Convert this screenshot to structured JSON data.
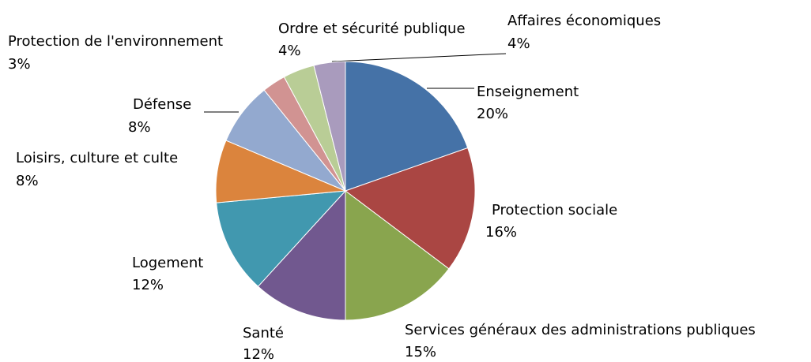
{
  "chart_data": {
    "type": "pie",
    "categories": [
      "Enseignement",
      "Protection sociale",
      "Services généraux des administrations publiques",
      "Santé",
      "Logement",
      "Loisirs, culture et culte",
      "Défense",
      "Protection de l'environnement",
      "Ordre et sécurité publique",
      "Affaires économiques"
    ],
    "values": [
      20,
      16,
      15,
      12,
      12,
      8,
      8,
      3,
      4,
      4
    ],
    "value_labels": [
      "20%",
      "16%",
      "15%",
      "12%",
      "12%",
      "8%",
      "8%",
      "3%",
      "4%",
      "4%"
    ],
    "colors": [
      "#4572a7",
      "#aa4643",
      "#89a54e",
      "#71588f",
      "#4198af",
      "#db843d",
      "#93a9cf",
      "#d19392",
      "#b9cd96",
      "#a99bbd"
    ]
  }
}
